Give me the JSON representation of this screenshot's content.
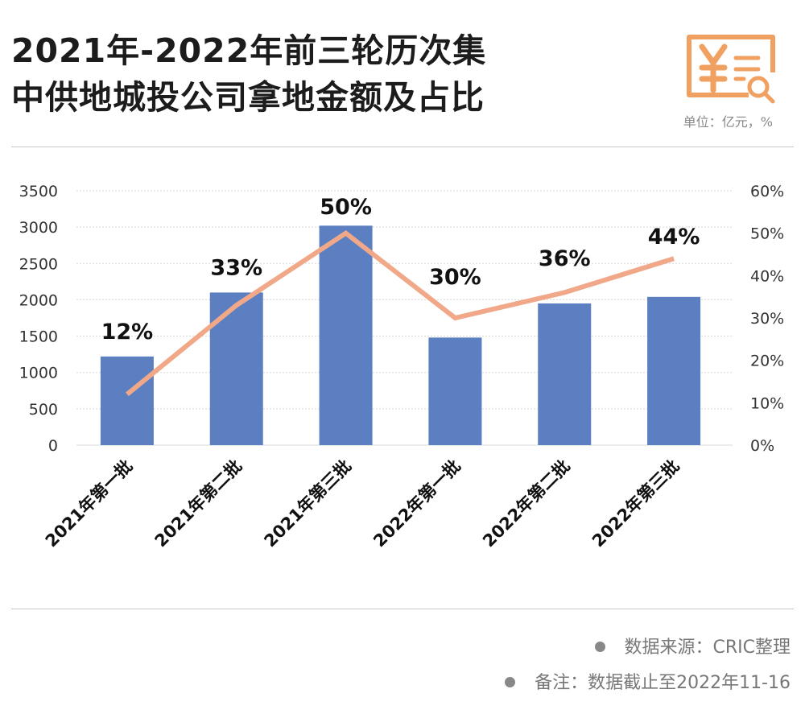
{
  "header": {
    "title_line1": "2021年-2022年前三轮历次集",
    "title_line2": "中供地城投公司拿地金额及占比",
    "unit": "单位：亿元，%",
    "icon": "yuan-document-search-icon"
  },
  "footer": {
    "source": "数据来源：CRIC整理",
    "note": "备注：数据截止至2022年11-16"
  },
  "colors": {
    "bar": "#5b7fc0",
    "line": "#f0a888",
    "icon": "#f0a060",
    "grid": "#d8d8d8"
  },
  "chart_data": {
    "type": "bar",
    "title": "2021年-2022年前三轮历次集中供地城投公司拿地金额及占比",
    "categories": [
      "2021年第一批",
      "2021年第二批",
      "2021年第三批",
      "2022年第一批",
      "2022年第二批",
      "2022年第三批"
    ],
    "series": [
      {
        "name": "拿地金额",
        "type": "bar",
        "axis": "left",
        "values": [
          1220,
          2100,
          3020,
          1480,
          1950,
          2040
        ]
      },
      {
        "name": "占比",
        "type": "line",
        "axis": "right",
        "values": [
          12,
          33,
          50,
          30,
          36,
          44
        ],
        "labels": [
          "12%",
          "33%",
          "50%",
          "30%",
          "36%",
          "44%"
        ]
      }
    ],
    "ylim": [
      0,
      3500
    ],
    "yticks": [
      "0",
      "500",
      "1000",
      "1500",
      "2000",
      "2500",
      "3000",
      "3500"
    ],
    "y2lim": [
      0,
      60
    ],
    "y2ticks": [
      "0%",
      "10%",
      "20%",
      "30%",
      "40%",
      "50%",
      "60%"
    ],
    "grid": true
  }
}
